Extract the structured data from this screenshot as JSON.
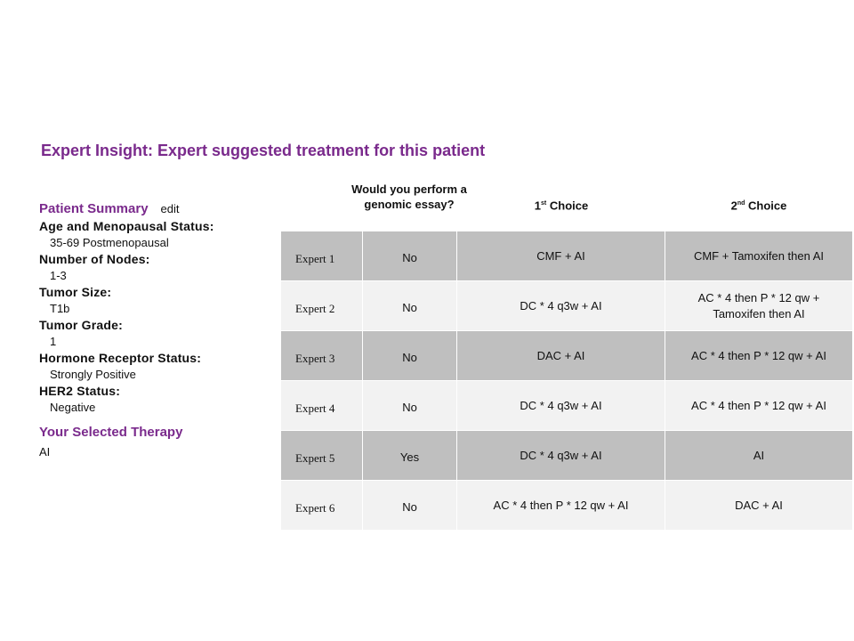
{
  "title": "Expert Insight: Expert suggested treatment for this patient",
  "summary": {
    "heading": "Patient Summary",
    "edit": "edit",
    "fields": [
      {
        "label": "Age and Menopausal Status:",
        "value": "35-69 Postmenopausal"
      },
      {
        "label": "Number of Nodes:",
        "value": "1-3"
      },
      {
        "label": "Tumor Size:",
        "value": "T1b"
      },
      {
        "label": "Tumor Grade:",
        "value": "1"
      },
      {
        "label": "Hormone Receptor Status:",
        "value": "Strongly Positive"
      },
      {
        "label": "HER2 Status:",
        "value": "Negative"
      }
    ],
    "selected_heading": "Your Selected Therapy",
    "selected_value": "AI"
  },
  "table": {
    "headers": {
      "genomic_line1": "Would you perform a",
      "genomic_line2": "genomic essay?",
      "first_num": "1",
      "first_sup": "st",
      "first_rest": " Choice",
      "second_num": "2",
      "second_sup": "nd",
      "second_rest": " Choice"
    },
    "rows": [
      {
        "expert": "Expert 1",
        "genomic": "No",
        "first": "CMF + AI",
        "second_l1": "CMF + Tamoxifen then AI",
        "second_l2": ""
      },
      {
        "expert": "Expert 2",
        "genomic": "No",
        "first": "DC * 4 q3w + AI",
        "second_l1": "AC * 4 then P * 12 qw +",
        "second_l2": "Tamoxifen then AI"
      },
      {
        "expert": "Expert 3",
        "genomic": "No",
        "first": "DAC + AI",
        "second_l1": "AC * 4 then P * 12 qw + AI",
        "second_l2": ""
      },
      {
        "expert": "Expert 4",
        "genomic": "No",
        "first": "DC * 4 q3w + AI",
        "second_l1": "AC * 4 then P * 12 qw + AI",
        "second_l2": ""
      },
      {
        "expert": "Expert 5",
        "genomic": "Yes",
        "first": "DC * 4 q3w + AI",
        "second_l1": "AI",
        "second_l2": ""
      },
      {
        "expert": "Expert 6",
        "genomic": "No",
        "first": "AC * 4 then P * 12 qw + AI",
        "second_l1": "DAC + AI",
        "second_l2": ""
      }
    ]
  }
}
